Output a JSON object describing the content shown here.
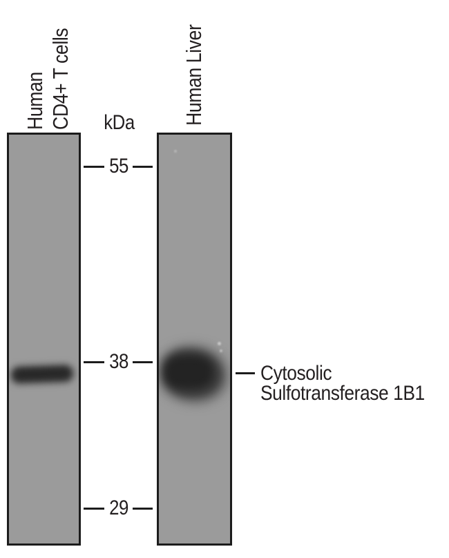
{
  "figure": {
    "unit_label": "kDa",
    "lane_labels": [
      {
        "lines": [
          "Human",
          "CD4+ T cells"
        ]
      },
      {
        "lines": [
          "Human Liver"
        ]
      }
    ],
    "markers": [
      "55",
      "38",
      "29"
    ],
    "annotation": {
      "line1": "Cytosolic",
      "line2": "Sulfotransferase 1B1"
    },
    "bands": [
      {
        "lane": "Human CD4+ T cells",
        "aligned_marker": "38"
      },
      {
        "lane": "Human Liver",
        "aligned_marker": "38"
      }
    ],
    "colors": {
      "background": "#ffffff",
      "lane_fill": "#9b9b9b",
      "lane_border": "#1c1c1c",
      "band_dark": "#272727",
      "text": "#231f20"
    }
  }
}
